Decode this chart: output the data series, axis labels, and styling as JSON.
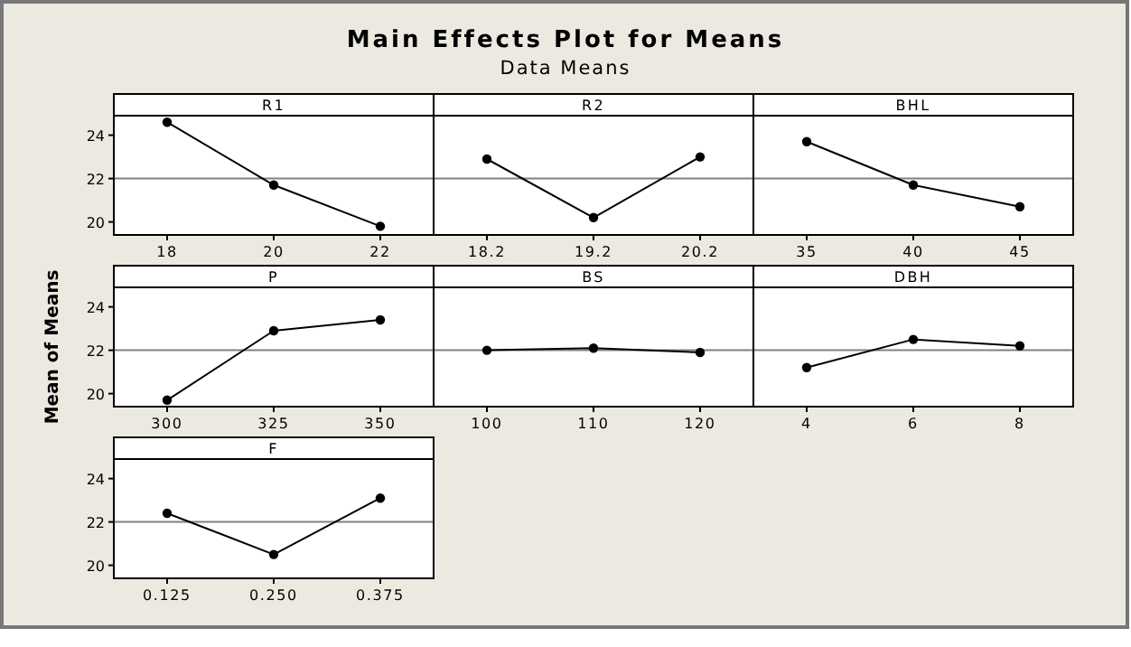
{
  "chart_data": [
    {
      "type": "other",
      "title": "Main Effects Plot for Means",
      "subtitle": "Data Means"
    },
    {
      "type": "line",
      "title": "R1",
      "categories": [
        "18",
        "20",
        "22"
      ],
      "values": [
        24.6,
        21.7,
        19.8
      ],
      "color": "#000000",
      "marker": "circle",
      "ylim": [
        19.4,
        24.9
      ],
      "yticks": [
        20,
        22,
        24
      ],
      "ref_lines": [
        {
          "axis": "y",
          "value": 22,
          "color": "#808080"
        }
      ]
    },
    {
      "type": "line",
      "title": "R2",
      "categories": [
        "18.2",
        "19.2",
        "20.2"
      ],
      "values": [
        22.9,
        20.2,
        23.0
      ],
      "color": "#000000",
      "marker": "circle",
      "ylim": [
        19.4,
        24.9
      ],
      "tick_labels": "x",
      "ref_lines": [
        {
          "axis": "y",
          "value": 22,
          "color": "#808080"
        }
      ]
    },
    {
      "type": "line",
      "title": "BHL",
      "categories": [
        "35",
        "40",
        "45"
      ],
      "values": [
        23.7,
        21.7,
        20.7
      ],
      "color": "#000000",
      "marker": "circle",
      "ylim": [
        19.4,
        24.9
      ],
      "tick_labels": "x",
      "ref_lines": [
        {
          "axis": "y",
          "value": 22,
          "color": "#808080"
        }
      ]
    },
    {
      "type": "line",
      "title": "P",
      "ylabel": "Mean of Means",
      "categories": [
        "300",
        "325",
        "350"
      ],
      "values": [
        19.7,
        22.9,
        23.4
      ],
      "color": "#000000",
      "marker": "circle",
      "ylim": [
        19.4,
        24.9
      ],
      "yticks": [
        20,
        22,
        24
      ],
      "ref_lines": [
        {
          "axis": "y",
          "value": 22,
          "color": "#808080"
        }
      ]
    },
    {
      "type": "line",
      "title": "BS",
      "categories": [
        "100",
        "110",
        "120"
      ],
      "values": [
        22.0,
        22.1,
        21.9
      ],
      "color": "#000000",
      "marker": "circle",
      "ylim": [
        19.4,
        24.9
      ],
      "tick_labels": "x",
      "ref_lines": [
        {
          "axis": "y",
          "value": 22,
          "color": "#808080"
        }
      ]
    },
    {
      "type": "line",
      "title": "DBH",
      "categories": [
        "4",
        "6",
        "8"
      ],
      "values": [
        21.2,
        22.5,
        22.2
      ],
      "color": "#000000",
      "marker": "circle",
      "ylim": [
        19.4,
        24.9
      ],
      "tick_labels": "x",
      "ref_lines": [
        {
          "axis": "y",
          "value": 22,
          "color": "#808080"
        }
      ]
    },
    {
      "type": "line",
      "title": "F",
      "categories": [
        "0.125",
        "0.250",
        "0.375"
      ],
      "values": [
        22.4,
        20.5,
        23.1
      ],
      "color": "#000000",
      "marker": "circle",
      "ylim": [
        19.4,
        24.9
      ],
      "yticks": [
        20,
        22,
        24
      ],
      "ref_lines": [
        {
          "axis": "y",
          "value": 22,
          "color": "#808080"
        }
      ]
    }
  ]
}
